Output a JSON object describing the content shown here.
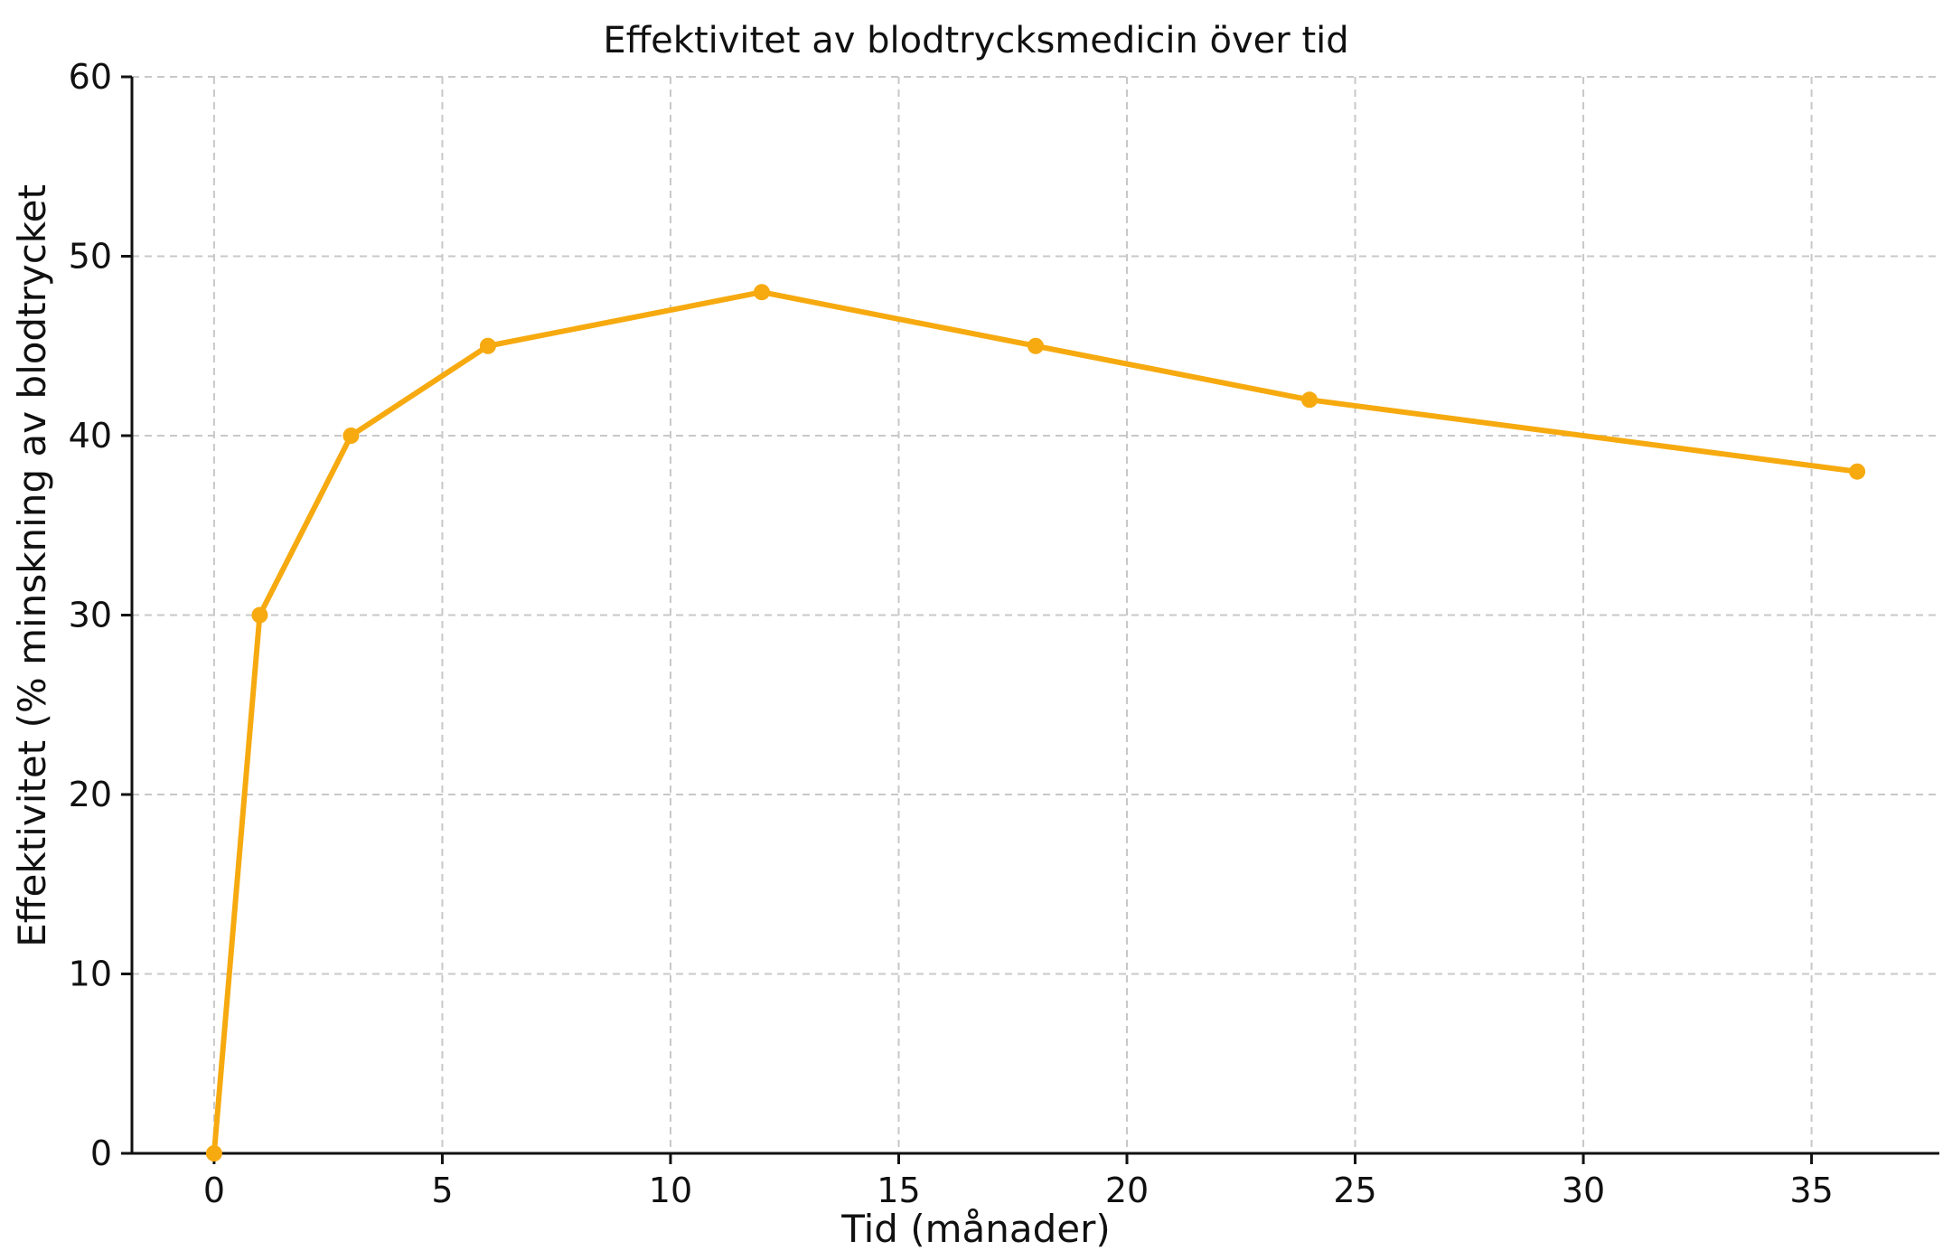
{
  "chart_data": {
    "type": "line",
    "title": "Effektivitet av blodtrycksmedicin över tid",
    "xlabel": "Tid (månader)",
    "ylabel": "Effektivitet (% minskning av blodtrycket",
    "xlim": [
      -1.8,
      37.8
    ],
    "ylim": [
      0,
      60
    ],
    "x_ticks": [
      0,
      5,
      10,
      15,
      20,
      25,
      30,
      35
    ],
    "y_ticks": [
      0,
      10,
      20,
      30,
      40,
      50,
      60
    ],
    "grid": true,
    "series": [
      {
        "color": "#F6AA0F",
        "marker": "circle",
        "x": [
          0,
          1,
          3,
          6,
          12,
          18,
          24,
          36
        ],
        "y": [
          0,
          30,
          40,
          45,
          48,
          45,
          42,
          38
        ]
      }
    ]
  }
}
